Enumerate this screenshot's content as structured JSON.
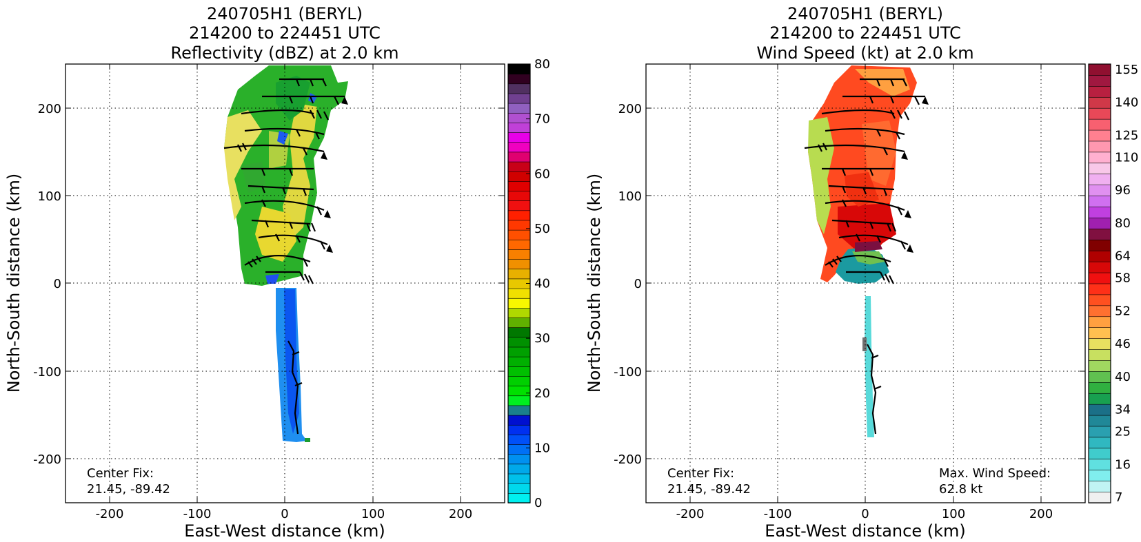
{
  "chart_data": [
    {
      "type": "heatmap",
      "title": [
        "240705H1 (BERYL)",
        "214200 to 224451 UTC",
        "Reflectivity (dBZ) at 2.0 km"
      ],
      "xlabel": "East-West distance (km)",
      "ylabel": "North-South distance (km)",
      "xlim": [
        -250,
        250
      ],
      "ylim": [
        -250,
        250
      ],
      "xticks": [
        -200,
        -100,
        0,
        100,
        200
      ],
      "yticks": [
        -200,
        -100,
        0,
        100,
        200
      ],
      "grid": true,
      "annotations": [
        "Center Fix:",
        "21.45, -89.42"
      ],
      "colorbar": {
        "range": [
          0,
          80
        ],
        "ticks": [
          0,
          10,
          20,
          30,
          40,
          50,
          60,
          70,
          80
        ],
        "colors": [
          "#00f0f0",
          "#00d8ec",
          "#00c0ea",
          "#00a8ea",
          "#0090f0",
          "#0070f6",
          "#0050f8",
          "#0030f0",
          "#0010d0",
          "#1a7f8c",
          "#00f020",
          "#00e000",
          "#00d000",
          "#00c000",
          "#00b000",
          "#00a000",
          "#009000",
          "#007800",
          "#60b000",
          "#b0d800",
          "#f8f800",
          "#f0e000",
          "#e8c800",
          "#e8b000",
          "#f09000",
          "#f88000",
          "#ff6800",
          "#ff5000",
          "#ff3800",
          "#ff2000",
          "#f01010",
          "#e80808",
          "#e00000",
          "#d00000",
          "#c80018",
          "#e00070",
          "#f000c0",
          "#e800e8",
          "#c040d8",
          "#b050d0",
          "#9060c0",
          "#704090",
          "#503060",
          "#300020",
          "#000000"
        ]
      },
      "series": [
        {
          "x": 0,
          "y": 230,
          "value": 25
        },
        {
          "x": 10,
          "y": 180,
          "value": 30
        },
        {
          "x": -40,
          "y": 150,
          "value": 38
        },
        {
          "x": 20,
          "y": 100,
          "value": 36
        },
        {
          "x": -20,
          "y": 50,
          "value": 35
        },
        {
          "x": 0,
          "y": 10,
          "value": 28
        },
        {
          "x": 10,
          "y": -80,
          "value": 10
        },
        {
          "x": 10,
          "y": -160,
          "value": 9
        }
      ],
      "wind_barbs": "present"
    },
    {
      "type": "heatmap",
      "title": [
        "240705H1 (BERYL)",
        "214200 to 224451 UTC",
        "Wind Speed (kt) at 2.0 km"
      ],
      "xlabel": "East-West distance (km)",
      "ylabel": "North-South distance (km)",
      "xlim": [
        -250,
        250
      ],
      "ylim": [
        -250,
        250
      ],
      "xticks": [
        -200,
        -100,
        0,
        100,
        200
      ],
      "yticks": [
        -200,
        -100,
        0,
        100,
        200
      ],
      "grid": true,
      "annotations": [
        "Center Fix:",
        "21.45, -89.42",
        "Max. Wind Speed:",
        "62.8 kt"
      ],
      "colorbar": {
        "tick_labels": [
          "7",
          "16",
          "25",
          "34",
          "40",
          "46",
          "52",
          "58",
          "64",
          "80",
          "96",
          "110",
          "125",
          "140",
          "155"
        ],
        "colors": [
          "#f0f0f0",
          "#c0f4f4",
          "#80eeee",
          "#60e0e0",
          "#40cccc",
          "#30b8c0",
          "#2aa0b0",
          "#208898",
          "#1b7088",
          "#18a050",
          "#30b040",
          "#60c050",
          "#a0d860",
          "#c8e060",
          "#e8e060",
          "#ffc050",
          "#ffa040",
          "#ff7030",
          "#ff5020",
          "#ff3018",
          "#f01010",
          "#d80808",
          "#b00000",
          "#800000",
          "#801040",
          "#a020b0",
          "#c040e0",
          "#d070f0",
          "#e090f0",
          "#f0b0f0",
          "#f8c8e8",
          "#ffb0d0",
          "#ff98b0",
          "#ff8090",
          "#f86070",
          "#e84858",
          "#d03848",
          "#b82040",
          "#a01840",
          "#901030"
        ]
      },
      "series": [
        {
          "x": 0,
          "y": 230,
          "value": 50
        },
        {
          "x": 10,
          "y": 180,
          "value": 54
        },
        {
          "x": -50,
          "y": 150,
          "value": 42
        },
        {
          "x": 20,
          "y": 100,
          "value": 58
        },
        {
          "x": 0,
          "y": 60,
          "value": 60
        },
        {
          "x": -10,
          "y": 20,
          "value": 25
        },
        {
          "x": 10,
          "y": -100,
          "value": 16
        },
        {
          "x": 10,
          "y": -160,
          "value": 14
        }
      ],
      "max_wind_speed_kt": 62.8
    }
  ]
}
